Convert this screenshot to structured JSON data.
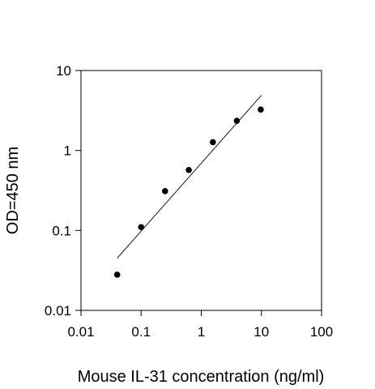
{
  "chart_data": {
    "type": "scatter",
    "title": "",
    "xlabel": "Mouse IL-31 concentration (ng/ml)",
    "ylabel": "OD=450 nm",
    "x_scale": "log",
    "y_scale": "log",
    "xlim": [
      0.01,
      100
    ],
    "ylim": [
      0.01,
      10
    ],
    "x_ticks": [
      "0.01",
      "0.1",
      "1",
      "10",
      "100"
    ],
    "y_ticks": [
      "0.01",
      "0.1",
      "1",
      "10"
    ],
    "grid": false,
    "legend": "none",
    "series": [
      {
        "points": [
          {
            "x": 0.04,
            "y": 0.028
          },
          {
            "x": 0.1,
            "y": 0.11
          },
          {
            "x": 0.25,
            "y": 0.31
          },
          {
            "x": 0.62,
            "y": 0.57
          },
          {
            "x": 1.56,
            "y": 1.27
          },
          {
            "x": 3.9,
            "y": 2.35
          },
          {
            "x": 9.75,
            "y": 3.25
          }
        ]
      }
    ],
    "fit_line": {
      "type": "linear-log-log",
      "points": [
        {
          "x": 0.04,
          "y": 0.045
        },
        {
          "x": 10,
          "y": 4.9
        }
      ]
    },
    "colors": {
      "marker": "#000000",
      "line": "#000000",
      "axis": "#000000"
    }
  }
}
